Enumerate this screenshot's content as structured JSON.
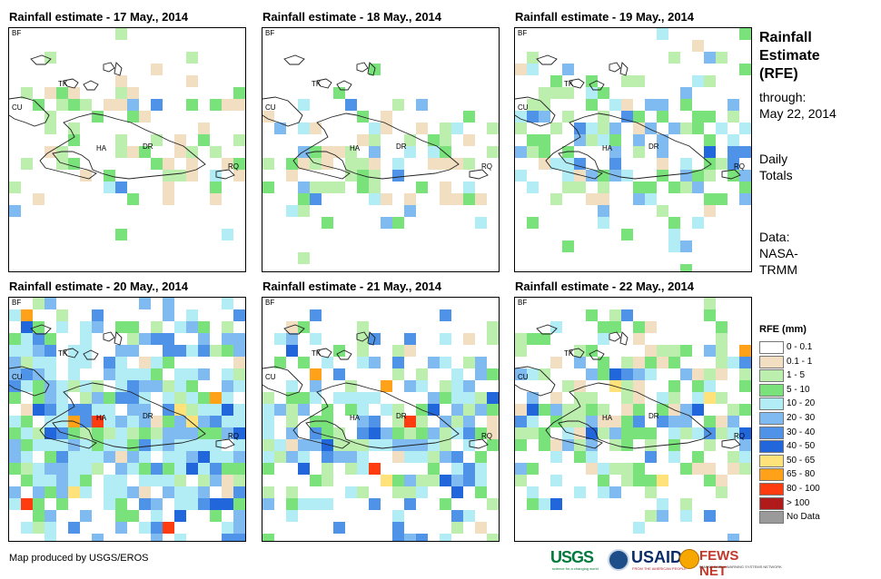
{
  "panels": [
    {
      "title": "Rainfall estimate - 17 May., 2014",
      "day": 17
    },
    {
      "title": "Rainfall estimate - 18 May., 2014",
      "day": 18
    },
    {
      "title": "Rainfall estimate - 19 May., 2014",
      "day": 19
    },
    {
      "title": "Rainfall estimate - 20 May., 2014",
      "day": 20
    },
    {
      "title": "Rainfall estimate - 21 May., 2014",
      "day": 21
    },
    {
      "title": "Rainfall estimate - 22 May., 2014",
      "day": 22
    }
  ],
  "map_labels": {
    "bf": "BF",
    "cu": "CU",
    "tk": "TK",
    "ha": "HA",
    "dr": "DR",
    "rq": "RQ"
  },
  "sidebar": {
    "title_line1": "Rainfall",
    "title_line2": "Estimate",
    "title_line3": "(RFE)",
    "through_label": "through:",
    "through_date": "May 22, 2014",
    "totals_line1": "Daily",
    "totals_line2": "Totals",
    "source_line1": "Data:",
    "source_line2": "NASA-",
    "source_line3": "TRMM"
  },
  "legend": {
    "title": "RFE (mm)",
    "items": [
      {
        "label": "0 - 0.1",
        "color": "#ffffff"
      },
      {
        "label": "0.1 - 1",
        "color": "#f2dfc1"
      },
      {
        "label": "1 - 5",
        "color": "#bcefad"
      },
      {
        "label": "5 - 10",
        "color": "#79e27a"
      },
      {
        "label": "10 - 20",
        "color": "#b2ecf5"
      },
      {
        "label": "20 - 30",
        "color": "#7fbbf0"
      },
      {
        "label": "30 - 40",
        "color": "#4f93e8"
      },
      {
        "label": "40 - 50",
        "color": "#2266db"
      },
      {
        "label": "50 - 65",
        "color": "#ffe37a"
      },
      {
        "label": "65 - 80",
        "color": "#ffa21a"
      },
      {
        "label": "80 - 100",
        "color": "#ff3b10"
      },
      {
        "label": "> 100",
        "color": "#b01a1a"
      },
      {
        "label": "No Data",
        "color": "#9a9a9a"
      }
    ]
  },
  "footer": {
    "credit": "Map produced by USGS/EROS"
  },
  "logos": {
    "usgs": "USGS",
    "usgs_tagline": "science for a changing world",
    "usaid": "USAID",
    "usaid_tagline": "FROM THE AMERICAN PEOPLE",
    "fews": "FEWS NET",
    "fews_tagline": "FAMINE EARLY WARNING SYSTEMS NETWORK"
  }
}
